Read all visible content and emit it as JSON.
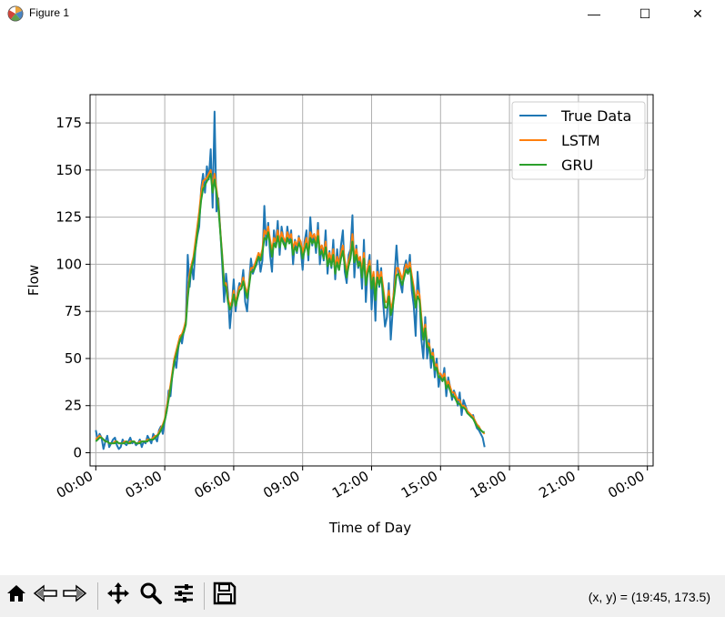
{
  "window": {
    "title": "Figure 1",
    "minimize_glyph": "—",
    "maximize_glyph": "☐",
    "close_glyph": "✕",
    "app_icon": "matplotlib-icon"
  },
  "toolbar": {
    "buttons": [
      "home-icon",
      "back-icon",
      "forward-icon",
      "pan-icon",
      "zoom-icon",
      "configure-subplots-icon",
      "save-icon"
    ],
    "coords": "(x, y) = (19:45, 173.5)"
  },
  "chart_data": {
    "type": "line",
    "title": "",
    "xlabel": "Time of Day",
    "ylabel": "Flow",
    "xlim": [
      -0.25,
      24.25
    ],
    "ylim": [
      -7,
      190
    ],
    "x_ticks": [
      0,
      3,
      6,
      9,
      12,
      15,
      18,
      21,
      24
    ],
    "x_tick_labels": [
      "00:00",
      "03:00",
      "06:00",
      "09:00",
      "12:00",
      "15:00",
      "18:00",
      "21:00",
      "00:00"
    ],
    "y_ticks": [
      0,
      25,
      50,
      75,
      100,
      125,
      150,
      175
    ],
    "y_tick_labels": [
      "0",
      "25",
      "50",
      "75",
      "100",
      "125",
      "150",
      "175"
    ],
    "grid": true,
    "legend": "upper-right",
    "colors": {
      "true_data": "#1f77b4",
      "lstm": "#ff7f0e",
      "gru": "#2ca02c"
    },
    "sampling_interval_minutes": 5,
    "series": [
      {
        "name": "True Data",
        "color": "#1f77b4",
        "values": [
          12,
          7,
          10,
          8,
          2,
          6,
          9,
          3,
          5,
          7,
          8,
          4,
          2,
          3,
          7,
          5,
          4,
          6,
          8,
          5,
          6,
          4,
          5,
          7,
          3,
          6,
          5,
          9,
          7,
          5,
          10,
          8,
          6,
          12,
          14,
          10,
          17,
          22,
          33,
          30,
          42,
          50,
          45,
          55,
          62,
          58,
          65,
          70,
          105,
          88,
          100,
          92,
          108,
          115,
          120,
          140,
          148,
          138,
          152,
          145,
          161,
          130,
          181,
          128,
          135,
          118,
          100,
          80,
          95,
          85,
          66,
          78,
          92,
          75,
          85,
          90,
          88,
          97,
          80,
          75,
          90,
          103,
          95,
          98,
          100,
          106,
          96,
          102,
          131,
          110,
          122,
          105,
          96,
          118,
          110,
          123,
          105,
          120,
          113,
          108,
          120,
          112,
          118,
          100,
          113,
          106,
          115,
          108,
          97,
          112,
          118,
          102,
          125,
          110,
          116,
          106,
          122,
          100,
          110,
          102,
          118,
          95,
          107,
          98,
          113,
          92,
          108,
          97,
          110,
          118,
          96,
          90,
          105,
          108,
          126,
          93,
          110,
          98,
          103,
          87,
          113,
          80,
          98,
          105,
          76,
          95,
          70,
          102,
          88,
          98,
          80,
          67,
          72,
          90,
          60,
          75,
          94,
          110,
          95,
          90,
          85,
          98,
          102,
          95,
          105,
          86,
          78,
          62,
          96,
          83,
          60,
          50,
          72,
          50,
          60,
          45,
          55,
          40,
          50,
          35,
          42,
          38,
          45,
          30,
          40,
          35,
          28,
          33,
          30,
          25,
          32,
          20,
          28,
          25,
          22,
          21,
          19,
          20,
          16,
          13,
          12,
          10,
          8,
          3
        ]
      },
      {
        "name": "LSTM",
        "color": "#ff7f0e",
        "values": [
          7,
          8,
          9,
          8,
          7,
          6,
          6,
          5,
          5,
          5,
          6,
          6,
          5,
          5,
          5,
          6,
          6,
          5,
          6,
          6,
          6,
          5,
          5,
          6,
          6,
          6,
          6,
          7,
          7,
          7,
          8,
          9,
          9,
          11,
          13,
          15,
          18,
          24,
          30,
          36,
          43,
          50,
          54,
          58,
          62,
          63,
          66,
          70,
          85,
          95,
          100,
          104,
          112,
          120,
          128,
          138,
          144,
          145,
          146,
          148,
          150,
          140,
          148,
          140,
          132,
          118,
          105,
          90,
          90,
          82,
          78,
          80,
          86,
          80,
          84,
          88,
          89,
          93,
          88,
          84,
          90,
          98,
          98,
          100,
          103,
          106,
          104,
          108,
          118,
          116,
          120,
          113,
          107,
          114,
          112,
          118,
          112,
          117,
          114,
          112,
          117,
          114,
          116,
          108,
          112,
          110,
          114,
          112,
          106,
          110,
          114,
          108,
          117,
          114,
          116,
          112,
          118,
          108,
          110,
          106,
          112,
          102,
          106,
          102,
          108,
          98,
          104,
          100,
          106,
          110,
          102,
          96,
          102,
          106,
          116,
          104,
          108,
          102,
          104,
          96,
          106,
          92,
          98,
          102,
          90,
          96,
          84,
          96,
          92,
          96,
          88,
          80,
          80,
          86,
          76,
          80,
          88,
          98,
          98,
          95,
          92,
          96,
          100,
          98,
          101,
          94,
          88,
          80,
          86,
          84,
          72,
          62,
          68,
          58,
          58,
          52,
          53,
          46,
          47,
          42,
          42,
          40,
          42,
          36,
          38,
          35,
          32,
          32,
          30,
          28,
          28,
          25,
          25,
          24,
          22,
          21,
          20,
          19,
          17,
          15,
          14,
          12,
          11,
          10
        ]
      },
      {
        "name": "GRU",
        "color": "#2ca02c",
        "values": [
          6,
          7,
          8,
          8,
          7,
          6,
          6,
          5,
          5,
          5,
          5,
          6,
          5,
          5,
          5,
          5,
          6,
          5,
          5,
          6,
          6,
          5,
          5,
          5,
          6,
          6,
          6,
          6,
          7,
          7,
          7,
          8,
          9,
          10,
          12,
          14,
          17,
          22,
          28,
          34,
          41,
          48,
          52,
          56,
          60,
          62,
          64,
          68,
          82,
          92,
          98,
          102,
          108,
          116,
          124,
          134,
          140,
          142,
          144,
          146,
          148,
          138,
          145,
          138,
          130,
          117,
          104,
          89,
          88,
          80,
          76,
          78,
          84,
          78,
          82,
          86,
          87,
          91,
          86,
          82,
          88,
          96,
          96,
          98,
          101,
          104,
          102,
          106,
          114,
          113,
          117,
          110,
          104,
          111,
          109,
          115,
          109,
          114,
          111,
          109,
          114,
          111,
          113,
          105,
          109,
          107,
          111,
          109,
          103,
          107,
          111,
          105,
          114,
          111,
          113,
          109,
          115,
          105,
          107,
          103,
          109,
          99,
          103,
          99,
          105,
          95,
          101,
          97,
          103,
          107,
          99,
          93,
          99,
          103,
          112,
          101,
          105,
          99,
          101,
          93,
          103,
          89,
          95,
          99,
          87,
          93,
          81,
          93,
          89,
          93,
          85,
          77,
          77,
          83,
          73,
          77,
          85,
          94,
          95,
          92,
          89,
          93,
          97,
          95,
          98,
          91,
          85,
          77,
          83,
          81,
          69,
          60,
          66,
          56,
          56,
          50,
          51,
          44,
          45,
          40,
          40,
          38,
          40,
          34,
          36,
          33,
          30,
          30,
          28,
          26,
          26,
          24,
          24,
          23,
          21,
          20,
          19,
          18,
          16,
          14,
          13,
          12,
          11,
          11
        ]
      }
    ]
  }
}
